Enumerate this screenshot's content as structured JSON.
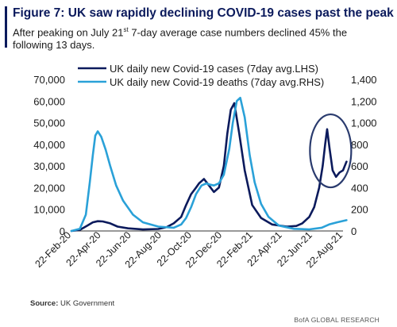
{
  "header": {
    "title": "Figure 7: UK saw rapidly declining COVID-19 cases past the peak",
    "subtitle_pre": "After peaking on July 21",
    "subtitle_sup": "st",
    "subtitle_post": " 7-day average case numbers declined 45% the following 13 days."
  },
  "footer": {
    "source_label": "Source:",
    "source_text": "UK Government",
    "brand": "BofA GLOBAL RESEARCH"
  },
  "colors": {
    "cases": "#0b1a5c",
    "deaths": "#2aa1d8",
    "title": "#0b1a5c",
    "circle": "#2a3b6e"
  },
  "chart_data": {
    "type": "line",
    "x_ticks": [
      "22-Feb-20",
      "22-Apr-20",
      "22-Jun-20",
      "22-Aug-20",
      "22-Oct-20",
      "22-Dec-20",
      "22-Feb-21",
      "22-Apr-21",
      "22-Jun-21",
      "22-Aug-21"
    ],
    "y_left": {
      "range": [
        0,
        70000
      ],
      "ticks": [
        "0",
        "10,000",
        "20,000",
        "30,000",
        "40,000",
        "50,000",
        "60,000",
        "70,000"
      ]
    },
    "y_right": {
      "range": [
        0,
        1400
      ],
      "ticks": [
        "0",
        "200",
        "400",
        "600",
        "800",
        "1,000",
        "1,200",
        "1,400"
      ]
    },
    "legend": {
      "position": "top",
      "entries": [
        "UK daily new Covid-19 cases (7day avg.LHS)",
        "UK daily new Covid-19 deaths (7day avg.RHS)"
      ]
    },
    "annotation": "circle around July-August 2021 case peak",
    "series": [
      {
        "name": "UK daily new Covid-19 cases (7day avg.LHS)",
        "axis": "left",
        "color": "#0b1a5c",
        "x": [
          "2020-02-22",
          "2020-03-10",
          "2020-03-25",
          "2020-04-05",
          "2020-04-15",
          "2020-04-25",
          "2020-05-10",
          "2020-05-25",
          "2020-06-15",
          "2020-07-15",
          "2020-08-15",
          "2020-09-01",
          "2020-09-15",
          "2020-09-30",
          "2020-10-10",
          "2020-10-20",
          "2020-10-30",
          "2020-11-05",
          "2020-11-15",
          "2020-11-25",
          "2020-12-05",
          "2020-12-15",
          "2020-12-25",
          "2021-01-01",
          "2021-01-08",
          "2021-01-15",
          "2021-01-25",
          "2021-02-05",
          "2021-02-20",
          "2021-03-10",
          "2021-04-01",
          "2021-05-01",
          "2021-05-20",
          "2021-06-01",
          "2021-06-15",
          "2021-06-25",
          "2021-07-05",
          "2021-07-12",
          "2021-07-17",
          "2021-07-21",
          "2021-07-26",
          "2021-08-01",
          "2021-08-08",
          "2021-08-15",
          "2021-08-22",
          "2021-08-29"
        ],
        "values": [
          0,
          500,
          2500,
          4000,
          4500,
          4400,
          3500,
          2000,
          1200,
          700,
          900,
          1800,
          3500,
          6500,
          12000,
          17000,
          20000,
          22000,
          24000,
          21000,
          18000,
          20000,
          30000,
          45000,
          56000,
          59000,
          45000,
          28000,
          12000,
          6000,
          3000,
          2000,
          2300,
          3500,
          6500,
          11000,
          20000,
          30000,
          40000,
          47000,
          38000,
          28000,
          25000,
          27000,
          28000,
          32000
        ]
      },
      {
        "name": "UK daily new Covid-19 deaths (7day avg.RHS)",
        "axis": "right",
        "color": "#2aa1d8",
        "x": [
          "2020-02-22",
          "2020-03-10",
          "2020-03-22",
          "2020-03-30",
          "2020-04-05",
          "2020-04-10",
          "2020-04-15",
          "2020-04-22",
          "2020-05-01",
          "2020-05-10",
          "2020-05-22",
          "2020-06-05",
          "2020-06-25",
          "2020-07-15",
          "2020-08-15",
          "2020-09-15",
          "2020-09-30",
          "2020-10-10",
          "2020-10-20",
          "2020-10-30",
          "2020-11-10",
          "2020-11-20",
          "2020-11-25",
          "2020-12-05",
          "2020-12-15",
          "2020-12-25",
          "2021-01-05",
          "2021-01-12",
          "2021-01-20",
          "2021-01-27",
          "2021-02-05",
          "2021-02-15",
          "2021-02-25",
          "2021-03-10",
          "2021-03-25",
          "2021-04-15",
          "2021-05-15",
          "2021-06-15",
          "2021-07-10",
          "2021-07-25",
          "2021-08-10",
          "2021-08-29"
        ],
        "values": [
          0,
          20,
          150,
          450,
          700,
          880,
          920,
          870,
          750,
          600,
          420,
          280,
          150,
          80,
          40,
          30,
          60,
          120,
          220,
          340,
          420,
          440,
          430,
          420,
          440,
          520,
          760,
          1000,
          1200,
          1230,
          1050,
          700,
          450,
          250,
          130,
          50,
          20,
          15,
          30,
          60,
          80,
          100
        ]
      }
    ]
  }
}
